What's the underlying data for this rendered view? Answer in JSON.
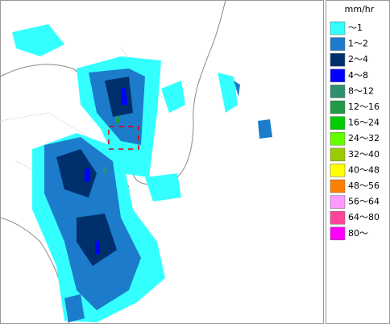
{
  "legend": {
    "title": "mm/hr",
    "items": [
      {
        "label": "～1",
        "color": "#33ffff"
      },
      {
        "label": "1～2",
        "color": "#1c7ccb"
      },
      {
        "label": "2～4",
        "color": "#00306b"
      },
      {
        "label": "4～8",
        "color": "#0000ff"
      },
      {
        "label": "8～12",
        "color": "#2f8f6f"
      },
      {
        "label": "12～16",
        "color": "#229944"
      },
      {
        "label": "16～24",
        "color": "#00cc00"
      },
      {
        "label": "24～32",
        "color": "#66ff00"
      },
      {
        "label": "32～40",
        "color": "#99cc00"
      },
      {
        "label": "40～48",
        "color": "#ffff00"
      },
      {
        "label": "48～56",
        "color": "#ff8000"
      },
      {
        "label": "56～64",
        "color": "#ff99ff"
      },
      {
        "label": "64～80",
        "color": "#ff4499"
      },
      {
        "label": "80～",
        "color": "#ff00ff"
      }
    ]
  }
}
